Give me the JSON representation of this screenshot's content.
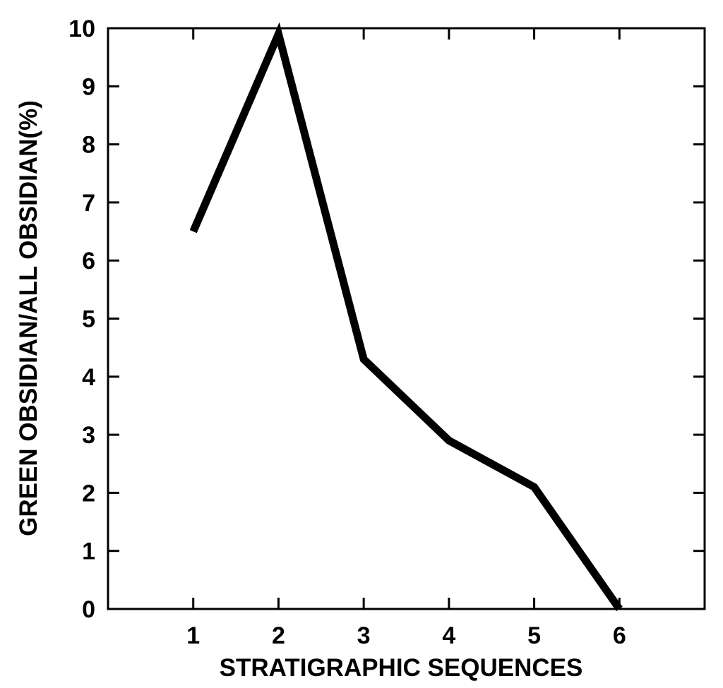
{
  "chart_data": {
    "type": "line",
    "title": "",
    "xlabel": "STRATIGRAPHIC SEQUENCES",
    "ylabel": "GREEN OBSIDIAN/ALL OBSIDIAN(%)",
    "x": [
      1,
      2,
      3,
      4,
      5,
      6
    ],
    "series": [
      {
        "values": [
          6.5,
          9.9,
          4.3,
          2.9,
          2.1,
          0
        ]
      }
    ],
    "xlim": [
      0,
      7
    ],
    "ylim": [
      0,
      10
    ],
    "x_ticks": [
      "1",
      "2",
      "3",
      "4",
      "5",
      "6"
    ],
    "y_ticks": [
      "0",
      "1",
      "2",
      "3",
      "4",
      "5",
      "6",
      "7",
      "8",
      "9",
      "10"
    ],
    "grid": false,
    "legend": "none",
    "colors": {
      "line": "#000000",
      "axes": "#000000",
      "background": "#ffffff"
    }
  }
}
